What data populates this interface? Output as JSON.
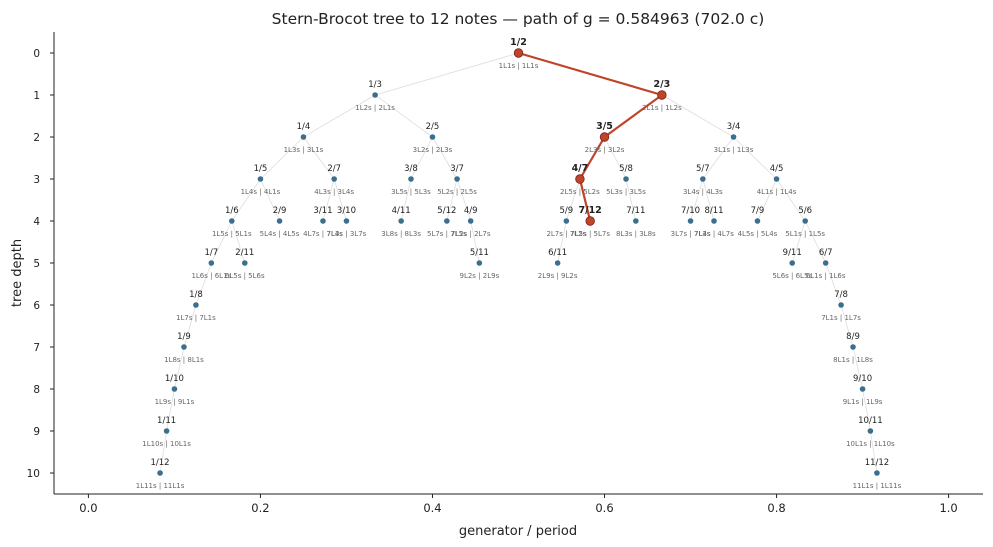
{
  "chart_data": {
    "type": "scatter",
    "title": "Stern-Brocot tree to 12 notes   —   path of g = 0.584963 (702.0 c)",
    "xlabel": "generator / period",
    "ylabel": "tree depth",
    "xlim": [
      -0.04,
      1.04
    ],
    "ylim": [
      10.5,
      -0.5
    ],
    "xticks": [
      "0.0",
      "0.2",
      "0.4",
      "0.6",
      "0.8",
      "1.0"
    ],
    "xtick_values": [
      0.0,
      0.2,
      0.4,
      0.6,
      0.8,
      1.0
    ],
    "yticks": [
      "0",
      "1",
      "2",
      "3",
      "4",
      "5",
      "6",
      "7",
      "8",
      "9",
      "10"
    ],
    "yticks_values": [
      0,
      1,
      2,
      3,
      4,
      5,
      6,
      7,
      8,
      9,
      10
    ],
    "node_color": "#3a6f8f",
    "path_color": "#c0432a",
    "edge_color": "#dddddd",
    "nodes": [
      {
        "id": "1/2",
        "label": "1/2",
        "sub": "1L1s | 1L1s",
        "x": 0.5,
        "y": 0,
        "path": true
      },
      {
        "id": "1/3",
        "label": "1/3",
        "sub": "1L2s | 2L1s",
        "x": 0.3333,
        "y": 1,
        "parent": "1/2"
      },
      {
        "id": "2/3",
        "label": "2/3",
        "sub": "2L1s | 1L2s",
        "x": 0.6667,
        "y": 1,
        "parent": "1/2",
        "path": true
      },
      {
        "id": "1/4",
        "label": "1/4",
        "sub": "1L3s | 3L1s",
        "x": 0.25,
        "y": 2,
        "parent": "1/3"
      },
      {
        "id": "2/5",
        "label": "2/5",
        "sub": "3L2s | 2L3s",
        "x": 0.4,
        "y": 2,
        "parent": "1/3"
      },
      {
        "id": "3/5",
        "label": "3/5",
        "sub": "2L3s | 3L2s",
        "x": 0.6,
        "y": 2,
        "parent": "2/3",
        "path": true
      },
      {
        "id": "3/4",
        "label": "3/4",
        "sub": "3L1s | 1L3s",
        "x": 0.75,
        "y": 2,
        "parent": "2/3"
      },
      {
        "id": "1/5",
        "label": "1/5",
        "sub": "1L4s | 4L1s",
        "x": 0.2,
        "y": 3,
        "parent": "1/4"
      },
      {
        "id": "2/7",
        "label": "2/7",
        "sub": "4L3s | 3L4s",
        "x": 0.2857,
        "y": 3,
        "parent": "1/4"
      },
      {
        "id": "3/8",
        "label": "3/8",
        "sub": "3L5s | 5L3s",
        "x": 0.375,
        "y": 3,
        "parent": "2/5"
      },
      {
        "id": "3/7",
        "label": "3/7",
        "sub": "5L2s | 2L5s",
        "x": 0.4286,
        "y": 3,
        "parent": "2/5"
      },
      {
        "id": "4/7",
        "label": "4/7",
        "sub": "2L5s | 5L2s",
        "x": 0.5714,
        "y": 3,
        "parent": "3/5",
        "path": true
      },
      {
        "id": "5/8",
        "label": "5/8",
        "sub": "5L3s | 3L5s",
        "x": 0.625,
        "y": 3,
        "parent": "3/5"
      },
      {
        "id": "5/7",
        "label": "5/7",
        "sub": "3L4s | 4L3s",
        "x": 0.7143,
        "y": 3,
        "parent": "3/4"
      },
      {
        "id": "4/5",
        "label": "4/5",
        "sub": "4L1s | 1L4s",
        "x": 0.8,
        "y": 3,
        "parent": "3/4"
      },
      {
        "id": "1/6",
        "label": "1/6",
        "sub": "1L5s | 5L1s",
        "x": 0.1667,
        "y": 4,
        "parent": "1/5"
      },
      {
        "id": "2/9",
        "label": "2/9",
        "sub": "5L4s | 4L5s",
        "x": 0.2222,
        "y": 4,
        "parent": "1/5"
      },
      {
        "id": "3/11",
        "label": "3/11",
        "sub": "4L7s | 7L4s",
        "x": 0.2727,
        "y": 4,
        "parent": "2/7"
      },
      {
        "id": "3/10",
        "label": "3/10",
        "sub": "7L3s | 3L7s",
        "x": 0.3,
        "y": 4,
        "parent": "2/7"
      },
      {
        "id": "4/11",
        "label": "4/11",
        "sub": "3L8s | 8L3s",
        "x": 0.3636,
        "y": 4,
        "parent": "3/8"
      },
      {
        "id": "5/12",
        "label": "5/12",
        "sub": "5L7s | 7L5s",
        "x": 0.4167,
        "y": 4,
        "parent": "3/7"
      },
      {
        "id": "4/9",
        "label": "4/9",
        "sub": "7L2s | 2L7s",
        "x": 0.4444,
        "y": 4,
        "parent": "3/7"
      },
      {
        "id": "5/9",
        "label": "5/9",
        "sub": "2L7s | 7L2s",
        "x": 0.5556,
        "y": 4,
        "parent": "4/7"
      },
      {
        "id": "7/12",
        "label": "7/12",
        "sub": "7L5s | 5L7s",
        "x": 0.5833,
        "y": 4,
        "parent": "4/7",
        "path": true
      },
      {
        "id": "7/11",
        "label": "7/11",
        "sub": "8L3s | 3L8s",
        "x": 0.6364,
        "y": 4,
        "parent": "5/8"
      },
      {
        "id": "7/10",
        "label": "7/10",
        "sub": "3L7s | 7L3s",
        "x": 0.7,
        "y": 4,
        "parent": "5/7"
      },
      {
        "id": "8/11",
        "label": "8/11",
        "sub": "7L4s | 4L7s",
        "x": 0.7273,
        "y": 4,
        "parent": "5/7"
      },
      {
        "id": "7/9",
        "label": "7/9",
        "sub": "4L5s | 5L4s",
        "x": 0.7778,
        "y": 4,
        "parent": "4/5"
      },
      {
        "id": "5/6",
        "label": "5/6",
        "sub": "5L1s | 1L5s",
        "x": 0.8333,
        "y": 4,
        "parent": "4/5"
      },
      {
        "id": "1/7",
        "label": "1/7",
        "sub": "1L6s | 6L1s",
        "x": 0.1429,
        "y": 5,
        "parent": "1/6"
      },
      {
        "id": "2/11",
        "label": "2/11",
        "sub": "6L5s | 5L6s",
        "x": 0.1818,
        "y": 5,
        "parent": "1/6"
      },
      {
        "id": "5/11",
        "label": "5/11",
        "sub": "9L2s | 2L9s",
        "x": 0.4545,
        "y": 5,
        "parent": "4/9"
      },
      {
        "id": "6/11",
        "label": "6/11",
        "sub": "2L9s | 9L2s",
        "x": 0.5455,
        "y": 5,
        "parent": "5/9"
      },
      {
        "id": "9/11",
        "label": "9/11",
        "sub": "5L6s | 6L5s",
        "x": 0.8182,
        "y": 5,
        "parent": "5/6"
      },
      {
        "id": "6/7",
        "label": "6/7",
        "sub": "6L1s | 1L6s",
        "x": 0.8571,
        "y": 5,
        "parent": "5/6"
      },
      {
        "id": "1/8",
        "label": "1/8",
        "sub": "1L7s | 7L1s",
        "x": 0.125,
        "y": 6,
        "parent": "1/7"
      },
      {
        "id": "7/8",
        "label": "7/8",
        "sub": "7L1s | 1L7s",
        "x": 0.875,
        "y": 6,
        "parent": "6/7"
      },
      {
        "id": "1/9",
        "label": "1/9",
        "sub": "1L8s | 8L1s",
        "x": 0.1111,
        "y": 7,
        "parent": "1/8"
      },
      {
        "id": "8/9",
        "label": "8/9",
        "sub": "8L1s | 1L8s",
        "x": 0.8889,
        "y": 7,
        "parent": "7/8"
      },
      {
        "id": "1/10",
        "label": "1/10",
        "sub": "1L9s | 9L1s",
        "x": 0.1,
        "y": 8,
        "parent": "1/9"
      },
      {
        "id": "9/10",
        "label": "9/10",
        "sub": "9L1s | 1L9s",
        "x": 0.9,
        "y": 8,
        "parent": "8/9"
      },
      {
        "id": "1/11",
        "label": "1/11",
        "sub": "1L10s | 10L1s",
        "x": 0.0909,
        "y": 9,
        "parent": "1/10"
      },
      {
        "id": "10/11",
        "label": "10/11",
        "sub": "10L1s | 1L10s",
        "x": 0.9091,
        "y": 9,
        "parent": "9/10"
      },
      {
        "id": "1/12",
        "label": "1/12",
        "sub": "1L11s | 11L1s",
        "x": 0.0833,
        "y": 10,
        "parent": "1/11"
      },
      {
        "id": "11/12",
        "label": "11/12",
        "sub": "11L1s | 1L11s",
        "x": 0.9167,
        "y": 10,
        "parent": "10/11"
      }
    ]
  }
}
